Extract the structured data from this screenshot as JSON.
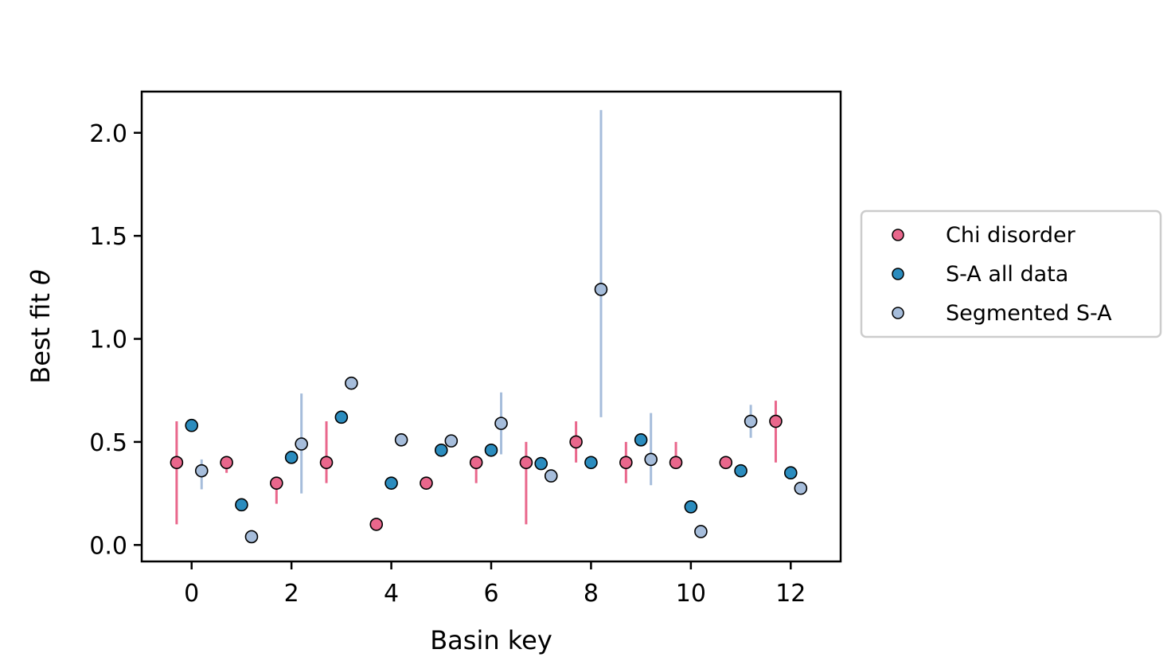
{
  "chart_data": {
    "type": "scatter",
    "xlabel": "Basin key",
    "ylabel_prefix": "Best fit ",
    "ylabel_symbol": "θ",
    "xlim": [
      -1,
      13
    ],
    "ylim": [
      -0.08,
      2.2
    ],
    "xticks": [
      0,
      2,
      4,
      6,
      8,
      10,
      12
    ],
    "xtick_labels": [
      "0",
      "2",
      "4",
      "6",
      "8",
      "10",
      "12"
    ],
    "yticks": [
      0.0,
      0.5,
      1.0,
      1.5,
      2.0
    ],
    "ytick_labels": [
      "0.0",
      "0.5",
      "1.0",
      "1.5",
      "2.0"
    ],
    "grid": false,
    "legend_position": "right, outside",
    "series": [
      {
        "name": "Chi disorder",
        "color": "#e9678c",
        "offset": -0.3,
        "values": [
          0.4,
          0.4,
          0.3,
          0.4,
          0.1,
          0.3,
          0.4,
          0.4,
          0.5,
          0.4,
          0.4,
          0.4,
          0.6
        ],
        "err_low": [
          0.1,
          0.35,
          0.2,
          0.3,
          0.1,
          0.3,
          0.3,
          0.1,
          0.4,
          0.3,
          0.4,
          0.4,
          0.4
        ],
        "err_high": [
          0.6,
          0.4,
          0.3,
          0.6,
          0.1,
          0.3,
          0.4,
          0.5,
          0.6,
          0.5,
          0.5,
          0.4,
          0.7
        ]
      },
      {
        "name": "S-A all data",
        "color": "#2b8cbe",
        "offset": 0,
        "values": [
          0.58,
          0.195,
          0.425,
          0.62,
          0.3,
          0.46,
          0.46,
          0.395,
          0.4,
          0.51,
          0.185,
          0.36,
          0.35
        ],
        "err_low": [
          0.58,
          0.195,
          0.425,
          0.62,
          0.3,
          0.46,
          0.46,
          0.395,
          0.4,
          0.51,
          0.185,
          0.36,
          0.35
        ],
        "err_high": [
          0.58,
          0.195,
          0.425,
          0.62,
          0.3,
          0.46,
          0.46,
          0.395,
          0.4,
          0.51,
          0.185,
          0.36,
          0.35
        ]
      },
      {
        "name": "Segmented S-A",
        "color": "#a6bddb",
        "offset": 0.2,
        "values": [
          0.36,
          0.04,
          0.49,
          0.785,
          0.51,
          0.505,
          0.59,
          0.335,
          1.24,
          0.415,
          0.065,
          0.6,
          0.275
        ],
        "err_low": [
          0.27,
          0.04,
          0.25,
          0.785,
          0.51,
          0.505,
          0.44,
          0.335,
          0.62,
          0.29,
          0.065,
          0.52,
          0.275
        ],
        "err_high": [
          0.415,
          0.04,
          0.735,
          0.785,
          0.51,
          0.505,
          0.74,
          0.335,
          2.11,
          0.64,
          0.065,
          0.68,
          0.275
        ]
      }
    ]
  }
}
